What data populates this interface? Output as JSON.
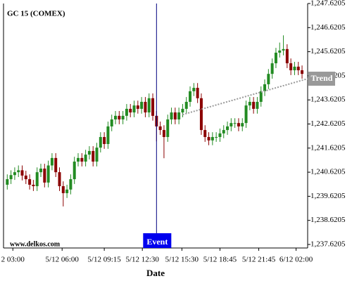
{
  "chart_data": {
    "type": "candlestick",
    "title": "GC 15 (COMEX)",
    "xlabel": "Date",
    "watermark": "www.delkos.com",
    "up_color": "#228b22",
    "down_color": "#8b0000",
    "xlim": [
      -1,
      80.5
    ],
    "xticks": [
      {
        "value": 1.5,
        "label": "2 03:00"
      },
      {
        "value": 14.7,
        "label": "5/12 06:00"
      },
      {
        "value": 26,
        "label": "5/12 09:15"
      },
      {
        "value": 36.2,
        "label": "5/12 12:30"
      },
      {
        "value": 46.8,
        "label": "5/12 15:30"
      },
      {
        "value": 57,
        "label": "5/12 18:45"
      },
      {
        "value": 67.4,
        "label": "5/12 21:45"
      },
      {
        "value": 77.4,
        "label": "6/12 02:00"
      }
    ],
    "ylim": [
      1237.475,
      1247.6205
    ],
    "yticks": [
      {
        "value": 1237.6205,
        "label": "1,237.6205"
      },
      {
        "value": 1238.6205,
        "label": "1,238.6205"
      },
      {
        "value": 1239.6205,
        "label": "1,239.6205"
      },
      {
        "value": 1240.6205,
        "label": "1,240.6205"
      },
      {
        "value": 1241.6205,
        "label": "1,241.6205"
      },
      {
        "value": 1242.6205,
        "label": "1,242.6205"
      },
      {
        "value": 1243.6205,
        "label": "1,243.6205"
      },
      {
        "value": 1244.6205,
        "label": "1,244.6205"
      },
      {
        "value": 1245.6205,
        "label": "1,245.6205"
      },
      {
        "value": 1246.6205,
        "label": "1,246.6205"
      },
      {
        "value": 1247.6205,
        "label": "1,247.6205"
      }
    ],
    "open": [
      1240.1,
      1240.33,
      1240.5,
      1240.62,
      1240.7,
      1240.48,
      1240.33,
      1240.1,
      1240.04,
      1240.62,
      1240.77,
      1240.19,
      1240.9,
      1241.21,
      1240.62,
      1240.04,
      1239.75,
      1239.9,
      1240.33,
      1241.06,
      1241.21,
      1241.06,
      1241.35,
      1241.5,
      1241.06,
      1241.64,
      1242.08,
      1241.79,
      1242.52,
      1242.81,
      1242.96,
      1242.81,
      1242.96,
      1243.25,
      1243.1,
      1243.39,
      1243.25,
      1243.54,
      1243.1,
      1243.69,
      1242.96,
      1242.52,
      1242.37,
      1242.08,
      1242.81,
      1243.1,
      1242.81,
      1243.1,
      1243.25,
      1243.54,
      1243.98,
      1244.12,
      1243.69,
      1242.37,
      1242.08,
      1241.94,
      1242.08,
      1242.08,
      1242.23,
      1242.37,
      1242.52,
      1242.66,
      1242.66,
      1242.52,
      1242.66,
      1243.39,
      1243.54,
      1243.25,
      1243.54,
      1243.98,
      1244.27,
      1244.7,
      1245.14,
      1245.58,
      1245.67,
      1245.73,
      1245.14,
      1244.85,
      1245.0,
      1244.85
    ],
    "high": [
      1240.53,
      1240.7,
      1240.82,
      1240.9,
      1240.9,
      1240.68,
      1240.53,
      1240.3,
      1240.82,
      1240.97,
      1240.97,
      1241.1,
      1241.41,
      1241.41,
      1240.82,
      1240.24,
      1240.1,
      1240.53,
      1241.26,
      1241.41,
      1241.41,
      1241.55,
      1241.7,
      1241.7,
      1241.84,
      1242.28,
      1242.28,
      1242.72,
      1243.01,
      1243.16,
      1243.16,
      1243.16,
      1243.45,
      1243.45,
      1243.59,
      1243.59,
      1243.74,
      1243.74,
      1243.89,
      1243.89,
      1243.16,
      1242.72,
      1242.57,
      1243.01,
      1243.3,
      1243.3,
      1243.3,
      1243.45,
      1243.74,
      1244.18,
      1244.32,
      1244.32,
      1243.89,
      1242.57,
      1242.28,
      1242.28,
      1242.28,
      1242.43,
      1242.57,
      1242.72,
      1242.86,
      1242.86,
      1242.86,
      1242.86,
      1243.59,
      1243.74,
      1243.74,
      1243.74,
      1244.18,
      1244.47,
      1244.9,
      1245.34,
      1245.78,
      1246.0,
      1246.3,
      1245.93,
      1245.34,
      1245.2,
      1245.2,
      1245.05
    ],
    "low": [
      1239.9,
      1240.13,
      1240.3,
      1240.42,
      1240.28,
      1240.13,
      1239.9,
      1239.84,
      1239.84,
      1240.42,
      1239.99,
      1239.99,
      1240.7,
      1240.42,
      1239.84,
      1239.2,
      1239.55,
      1239.7,
      1240.13,
      1240.86,
      1240.86,
      1240.86,
      1241.15,
      1240.86,
      1240.86,
      1241.44,
      1241.59,
      1241.59,
      1242.32,
      1242.61,
      1242.61,
      1242.61,
      1242.76,
      1242.9,
      1242.9,
      1243.05,
      1243.05,
      1242.9,
      1242.9,
      1242.76,
      1241.9,
      1242.17,
      1241.2,
      1241.88,
      1242.61,
      1242.61,
      1242.61,
      1242.9,
      1243.05,
      1243.34,
      1243.78,
      1243.49,
      1242.17,
      1241.88,
      1241.74,
      1241.74,
      1241.88,
      1241.88,
      1242.03,
      1242.17,
      1242.32,
      1242.46,
      1242.32,
      1242.32,
      1242.46,
      1243.19,
      1243.05,
      1243.05,
      1243.34,
      1243.78,
      1244.07,
      1244.5,
      1244.94,
      1245.38,
      1245.47,
      1244.94,
      1244.65,
      1244.65,
      1244.65,
      1244.5
    ],
    "close": [
      1240.33,
      1240.5,
      1240.62,
      1240.7,
      1240.48,
      1240.33,
      1240.1,
      1240.04,
      1240.62,
      1240.77,
      1240.19,
      1240.9,
      1241.21,
      1240.62,
      1240.04,
      1239.75,
      1239.9,
      1240.33,
      1241.06,
      1241.21,
      1241.06,
      1241.35,
      1241.5,
      1241.06,
      1241.64,
      1242.08,
      1241.79,
      1242.52,
      1242.81,
      1242.96,
      1242.81,
      1242.96,
      1243.25,
      1243.1,
      1243.39,
      1243.25,
      1243.54,
      1243.1,
      1243.69,
      1242.96,
      1242.52,
      1242.37,
      1242.08,
      1242.81,
      1243.1,
      1242.81,
      1243.1,
      1243.25,
      1243.54,
      1243.98,
      1244.12,
      1243.69,
      1242.37,
      1242.08,
      1241.94,
      1242.08,
      1242.08,
      1242.23,
      1242.37,
      1242.52,
      1242.66,
      1242.66,
      1242.52,
      1242.66,
      1243.39,
      1243.54,
      1243.25,
      1243.54,
      1243.98,
      1244.27,
      1244.7,
      1245.14,
      1245.58,
      1245.67,
      1245.73,
      1245.14,
      1244.85,
      1245.0,
      1244.85,
      1244.7
    ],
    "event": {
      "label": "Event",
      "x": 40,
      "color": "#0000ee"
    },
    "trend": {
      "label": "Trend",
      "x": [
        47,
        80.5
      ],
      "y": [
        1243.01,
        1244.5
      ],
      "color": "#999999"
    }
  }
}
